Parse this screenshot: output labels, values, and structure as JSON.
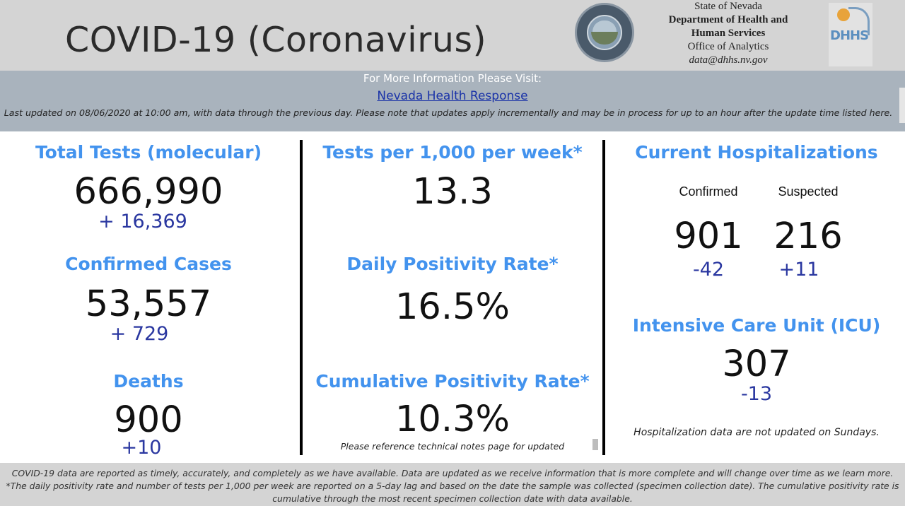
{
  "header": {
    "title": "COVID-19 (Coronavirus)",
    "agency": {
      "line1": "State of Nevada",
      "line2": "Department of Health and",
      "line3": "Human Services",
      "line4": "Office of Analytics",
      "line5": "data@dhhs.nv.gov"
    },
    "logo_text": "DHHS",
    "seal_icon": "nevada-state-seal-icon"
  },
  "info": {
    "heading": "For More Information Please Visit:",
    "link": "Nevada Health Response",
    "note": "Last updated on 08/06/2020 at 10:00 am, with data through the previous day.  Please note that updates apply incrementally and may be in process for up to an hour after the update time listed here."
  },
  "left": {
    "tests": {
      "title": "Total Tests (molecular)",
      "value": "666,990",
      "delta": "+ 16,369"
    },
    "cases": {
      "title": "Confirmed Cases",
      "value": "53,557",
      "delta": "+ 729"
    },
    "deaths": {
      "title": "Deaths",
      "value": "900",
      "delta": "+10"
    }
  },
  "middle": {
    "tests_per_1000": {
      "title": "Tests per 1,000 per week*",
      "value": "13.3"
    },
    "daily_positivity": {
      "title": "Daily Positivity Rate*",
      "value": "16.5%"
    },
    "cumulative_positivity": {
      "title": "Cumulative Positivity Rate*",
      "value": "10.3%",
      "note": "Please reference technical notes page for updated"
    }
  },
  "right": {
    "hospitalizations": {
      "title": "Current Hospitalizations",
      "confirmed": {
        "label": "Confirmed",
        "value": "901",
        "delta": "-42"
      },
      "suspected": {
        "label": "Suspected",
        "value": "216",
        "delta": "+11"
      }
    },
    "icu": {
      "title": "Intensive Care Unit (ICU)",
      "value": "307",
      "delta": "-13"
    },
    "note": "Hospitalization data are not updated on Sundays."
  },
  "footer": {
    "line1": "COVID-19 data are reported as timely, accurately, and completely as we have available.  Data are updated as we receive information that is more complete and will change over time as we learn more.",
    "line2": "*The daily positivity rate and number of tests per 1,000 per week are reported on a 5-day lag and based on the date the sample was collected (specimen collection date).  The cumulative positivity rate is",
    "line3": "cumulative through the most recent specimen collection date with data available."
  },
  "colors": {
    "header_bg": "#d4d4d4",
    "infobar_bg": "#a9b3bd",
    "title_blue": "#4393ee",
    "delta_blue": "#2a37a0",
    "link_blue": "#1a33a8"
  }
}
